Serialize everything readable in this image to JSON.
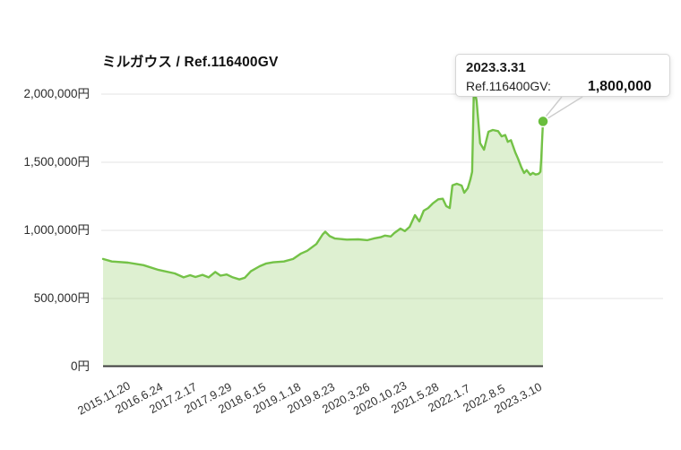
{
  "chart": {
    "title": "ミルガウス / Ref.116400GV",
    "colors": {
      "line": "#74c247",
      "area_fill": "rgba(124,196,72,0.25)",
      "marker_fill": "#69be3c",
      "marker_ring": "#ffffff",
      "grid": "#e3e3e3",
      "axis_line": "#3c3c3c",
      "pointer_line": "#cccccc"
    }
  },
  "tooltip": {
    "date": "2023.3.31",
    "series_label": "Ref.116400GV:",
    "value": "1,800,000"
  },
  "chart_data": {
    "type": "area",
    "title": "ミルガウス / Ref.116400GV",
    "unit": "円 (JPY)",
    "xlabel": "",
    "ylabel": "",
    "ylim": [
      0,
      2000000
    ],
    "grid": "horizontal-only",
    "legend": "none",
    "y_ticks": {
      "values": [
        2000000,
        1500000,
        1000000,
        500000,
        0
      ],
      "labels": [
        "2,000,000円",
        "1,500,000円",
        "1,000,000円",
        "500,000円",
        "0円"
      ]
    },
    "x_tick_labels": [
      "2015.11.20",
      "2016.6.24",
      "2017.2.17",
      "2017.9.29",
      "2018.6.15",
      "2019.1.18",
      "2019.8.23",
      "2020.3.26",
      "2020.10.23",
      "2021.5.28",
      "2022.1.7",
      "2022.8.5",
      "2023.3.10"
    ],
    "x_range": [
      "2015.11.20",
      "2023.3.31"
    ],
    "series": [
      {
        "name": "Ref.116400GV",
        "points_format": "[fraction_of_time_axis, price_in_yen]",
        "points": [
          [
            0.0,
            790000
          ],
          [
            0.02,
            772000
          ],
          [
            0.057,
            763000
          ],
          [
            0.092,
            745000
          ],
          [
            0.126,
            710000
          ],
          [
            0.163,
            684000
          ],
          [
            0.183,
            655000
          ],
          [
            0.198,
            671000
          ],
          [
            0.21,
            658000
          ],
          [
            0.226,
            674000
          ],
          [
            0.24,
            655000
          ],
          [
            0.255,
            695000
          ],
          [
            0.267,
            668000
          ],
          [
            0.281,
            676000
          ],
          [
            0.295,
            655000
          ],
          [
            0.31,
            640000
          ],
          [
            0.322,
            652000
          ],
          [
            0.336,
            700000
          ],
          [
            0.356,
            737000
          ],
          [
            0.371,
            757000
          ],
          [
            0.387,
            766000
          ],
          [
            0.411,
            772000
          ],
          [
            0.432,
            790000
          ],
          [
            0.45,
            830000
          ],
          [
            0.464,
            850000
          ],
          [
            0.485,
            900000
          ],
          [
            0.499,
            970000
          ],
          [
            0.505,
            990000
          ],
          [
            0.515,
            958000
          ],
          [
            0.527,
            940000
          ],
          [
            0.554,
            932000
          ],
          [
            0.58,
            934000
          ],
          [
            0.601,
            928000
          ],
          [
            0.615,
            940000
          ],
          [
            0.631,
            950000
          ],
          [
            0.641,
            962000
          ],
          [
            0.654,
            955000
          ],
          [
            0.662,
            980000
          ],
          [
            0.676,
            1013000
          ],
          [
            0.686,
            995000
          ],
          [
            0.697,
            1026000
          ],
          [
            0.709,
            1112000
          ],
          [
            0.719,
            1066000
          ],
          [
            0.729,
            1145000
          ],
          [
            0.739,
            1164000
          ],
          [
            0.749,
            1197000
          ],
          [
            0.762,
            1228000
          ],
          [
            0.772,
            1232000
          ],
          [
            0.78,
            1178000
          ],
          [
            0.788,
            1164000
          ],
          [
            0.794,
            1330000
          ],
          [
            0.804,
            1342000
          ],
          [
            0.815,
            1329000
          ],
          [
            0.821,
            1276000
          ],
          [
            0.829,
            1309000
          ],
          [
            0.835,
            1375000
          ],
          [
            0.839,
            1430000
          ],
          [
            0.843,
            2050000
          ],
          [
            0.849,
            1950000
          ],
          [
            0.857,
            1640000
          ],
          [
            0.866,
            1592000
          ],
          [
            0.876,
            1724000
          ],
          [
            0.886,
            1737000
          ],
          [
            0.898,
            1728000
          ],
          [
            0.906,
            1690000
          ],
          [
            0.914,
            1700000
          ],
          [
            0.92,
            1650000
          ],
          [
            0.927,
            1662000
          ],
          [
            0.937,
            1572000
          ],
          [
            0.943,
            1528000
          ],
          [
            0.951,
            1462000
          ],
          [
            0.957,
            1421000
          ],
          [
            0.963,
            1442000
          ],
          [
            0.971,
            1408000
          ],
          [
            0.977,
            1422000
          ],
          [
            0.983,
            1410000
          ],
          [
            0.99,
            1415000
          ],
          [
            0.994,
            1430000
          ],
          [
            0.996,
            1520000
          ],
          [
            1.0,
            1800000
          ]
        ]
      }
    ],
    "highlight_point": {
      "date": "2023.3.31",
      "value": 1800000,
      "marker": true,
      "tooltip_visible": true
    }
  }
}
